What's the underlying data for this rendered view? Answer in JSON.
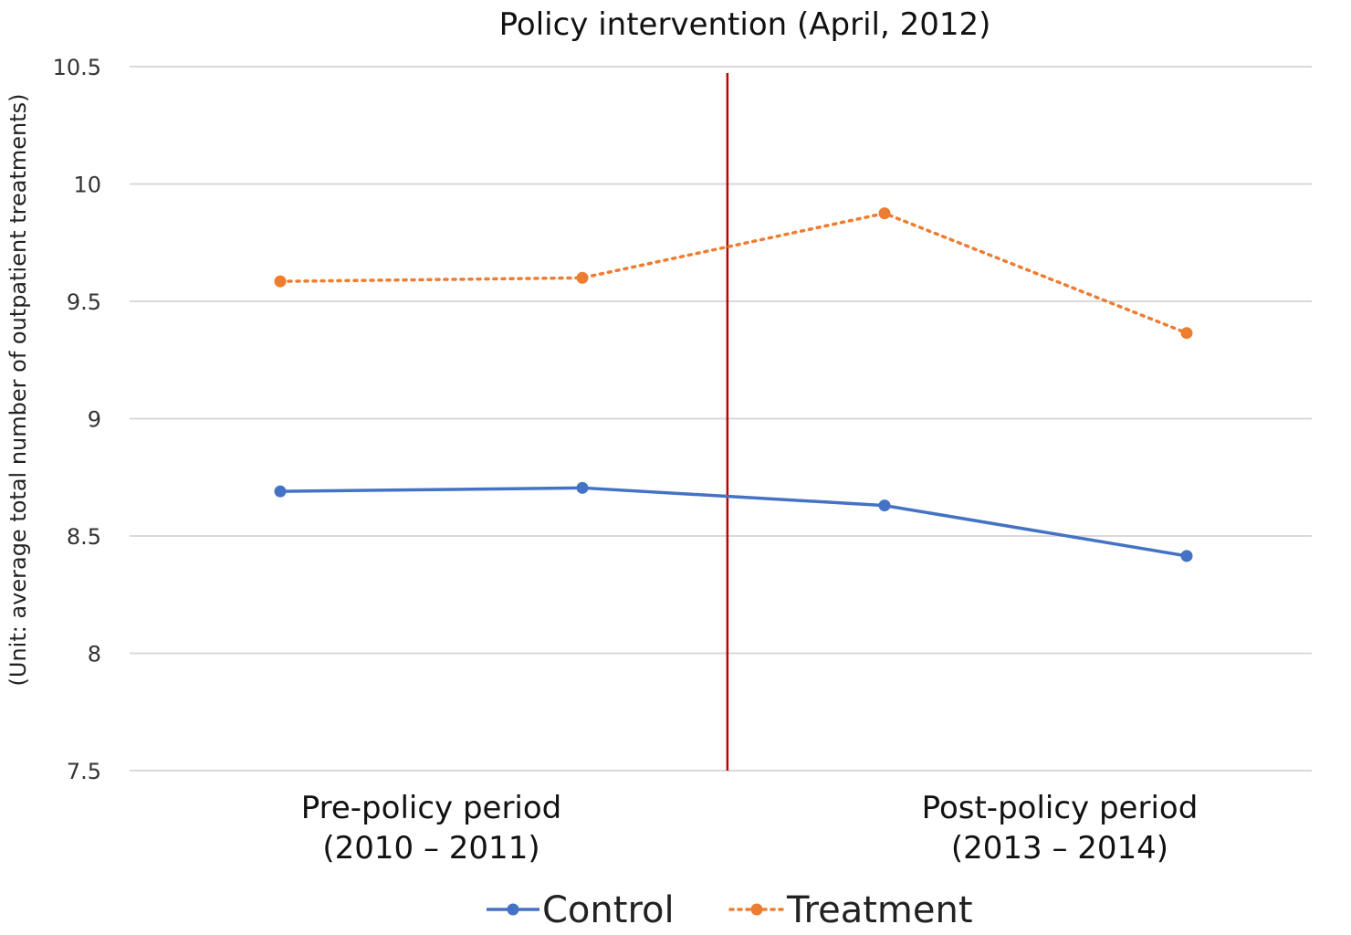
{
  "chart_data": {
    "type": "line",
    "title": "Policy intervention (April, 2012)",
    "ylabel": "(Unit: average total number of outpatient treatments)",
    "xlabel": "",
    "ylim": [
      7.5,
      10.5
    ],
    "yticks": [
      "10.5",
      "10",
      "9.5",
      "9",
      "8.5",
      "8",
      "7.5"
    ],
    "ytick_values": [
      10.5,
      10,
      9.5,
      9,
      8.5,
      8,
      7.5
    ],
    "grid": true,
    "x": [
      1,
      2,
      3,
      4
    ],
    "intervention_x": 2.48,
    "periods": [
      {
        "line1": "Pre-policy period",
        "line2": "(2010 – 2011)",
        "x_center": 1.5
      },
      {
        "line1": "Post-policy period",
        "line2": "(2013 – 2014)",
        "x_center": 3.58
      }
    ],
    "series": [
      {
        "name": "Control",
        "values": [
          8.69,
          8.705,
          8.63,
          8.415
        ],
        "color": "#4472C4",
        "style": "solid"
      },
      {
        "name": "Treatment",
        "values": [
          9.585,
          9.6,
          9.875,
          9.365
        ],
        "color": "#ED7D31",
        "style": "dotted"
      }
    ],
    "intervention_color": "#C00000",
    "legend_position": "bottom-center"
  }
}
